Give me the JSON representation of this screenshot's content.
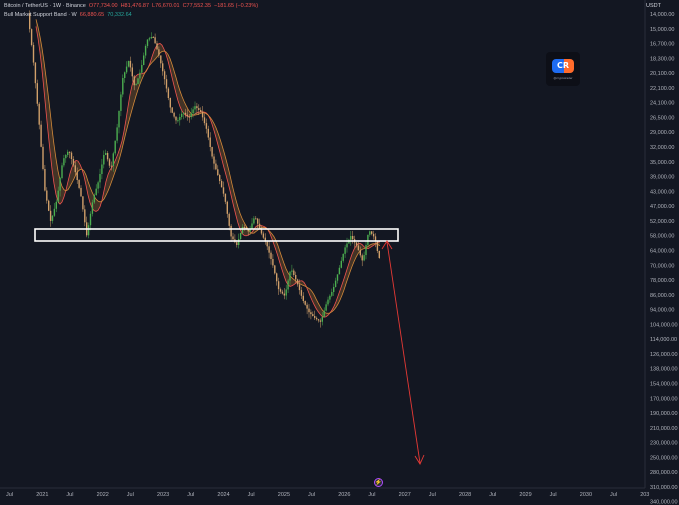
{
  "legend": {
    "symbol": "Bitcoin / TetherUS · 1W · Binance",
    "open": "O77,734.00",
    "high": "H81,476.87",
    "low": "L76,670.01",
    "close": "C77,552.35",
    "change": "−181.65 (−0.23%)",
    "indicator_name": "Bull Market Support Band · W",
    "indicator_val1": "66,880.65",
    "indicator_val2": "70,332.64"
  },
  "price_axis": {
    "unit": "USDT",
    "ticks": [
      "14,000.00",
      "15,000.00",
      "16,700.00",
      "18,300.00",
      "20,100.00",
      "22,100.00",
      "24,100.00",
      "26,500.00",
      "29,000.00",
      "32,000.00",
      "35,000.00",
      "39,000.00",
      "43,000.00",
      "47,000.00",
      "52,000.00",
      "58,000.00",
      "64,000.00",
      "70,000.00",
      "78,000.00",
      "86,000.00",
      "94,000.00",
      "104,000.00",
      "114,000.00",
      "126,000.00",
      "138,000.00",
      "154,000.00",
      "170,000.00",
      "190,000.00",
      "210,000.00",
      "230,000.00",
      "250,000.00",
      "280,000.00",
      "310,000.00",
      "340,000.00"
    ]
  },
  "time_axis": {
    "ticks": [
      "Jul",
      "2021",
      "Jul",
      "2022",
      "Jul",
      "2023",
      "Jul",
      "2024",
      "Jul",
      "2025",
      "Jul",
      "2026",
      "Jul",
      "2027",
      "Jul",
      "2028",
      "Jul",
      "2029",
      "Jul",
      "2030",
      "Jul",
      "203"
    ]
  },
  "logo": {
    "text": "CR",
    "handle": "@cryptotrader"
  },
  "scroll_button": {
    "icon": "scroll-to-realtime-icon",
    "glyph": "⚡"
  },
  "colors": {
    "background": "#131722",
    "up_candle": "#4caf50",
    "down_candle": "#d1a06a",
    "band_red": "#ef5350",
    "band_orange": "#d38a3a",
    "zone_rect": "#ffffff",
    "projection_arrow": "#e53935"
  }
}
